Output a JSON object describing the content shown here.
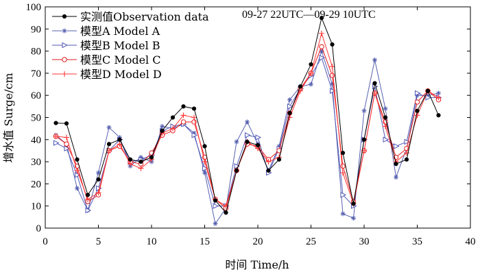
{
  "chart_data": {
    "type": "line",
    "xlabel": "时间 Time/h",
    "ylabel": "增水值 Surge/cm",
    "annotation": "09-27 22UTC—09-29 10UTC",
    "xlim": [
      0,
      40
    ],
    "ylim": [
      0,
      100
    ],
    "xticks": [
      0,
      5,
      10,
      15,
      20,
      25,
      30,
      35,
      40
    ],
    "yticks": [
      0,
      10,
      20,
      30,
      40,
      50,
      60,
      70,
      80,
      90,
      100
    ],
    "grid": false,
    "legend_position": "top-left",
    "x": [
      1,
      2,
      3,
      4,
      5,
      6,
      7,
      8,
      9,
      10,
      11,
      12,
      13,
      14,
      15,
      16,
      17,
      18,
      19,
      20,
      21,
      22,
      23,
      24,
      25,
      26,
      27,
      28,
      29,
      30,
      31,
      32,
      33,
      34,
      35,
      36,
      37
    ],
    "series": [
      {
        "name": "实测值Observation data",
        "color": "#000000",
        "marker": "dot",
        "values": [
          47.5,
          47.3,
          31,
          15,
          22,
          38,
          40,
          31,
          30,
          32,
          44,
          50,
          55,
          54,
          37,
          12.5,
          7,
          26,
          39,
          37.5,
          26,
          31,
          52,
          64,
          74,
          95,
          83,
          34,
          11,
          40,
          65.5,
          50,
          29,
          31,
          53,
          62,
          51
        ]
      },
      {
        "name": "模型A Model A",
        "color": "#5560b0",
        "marker": "star",
        "values": [
          42,
          38,
          18,
          8,
          25,
          45.5,
          41,
          28,
          32,
          30,
          46,
          45,
          47,
          43,
          25,
          2,
          9,
          39,
          48,
          38,
          26,
          37,
          58,
          64,
          65,
          80,
          65,
          6.5,
          4.5,
          53,
          76,
          54,
          23,
          36,
          60,
          60,
          61
        ]
      },
      {
        "name": "模型B Model B",
        "color": "#4f56b5",
        "marker": "triangle-right",
        "values": [
          38.5,
          36,
          24,
          8,
          18,
          35,
          40,
          30,
          31,
          33,
          44,
          46,
          47,
          42,
          27,
          10,
          10,
          28,
          42,
          41,
          25,
          36,
          55,
          63,
          69,
          77,
          62,
          15,
          10,
          40,
          64,
          40,
          37,
          39,
          61,
          59,
          59
        ]
      },
      {
        "name": "模型C Model C",
        "color": "#e41a1c",
        "marker": "circle",
        "values": [
          41.5,
          38,
          28,
          12,
          15,
          35,
          37,
          30,
          29,
          34,
          42,
          44,
          48,
          48,
          32,
          13,
          9,
          26,
          38,
          37,
          31,
          35,
          52,
          63,
          70,
          82,
          69,
          28,
          12,
          35,
          61,
          48,
          32,
          36,
          57,
          62,
          58
        ]
      },
      {
        "name": "模型D Model D",
        "color": "#ff3333",
        "marker": "plus",
        "values": [
          41.5,
          41,
          26,
          13,
          16,
          35,
          38,
          29,
          27,
          31,
          43,
          45,
          51,
          50,
          30,
          13,
          10,
          26,
          39,
          36,
          30,
          32,
          50,
          62,
          70,
          88,
          73,
          25,
          11,
          35,
          61,
          46,
          30,
          34,
          51,
          62,
          59
        ]
      }
    ]
  }
}
